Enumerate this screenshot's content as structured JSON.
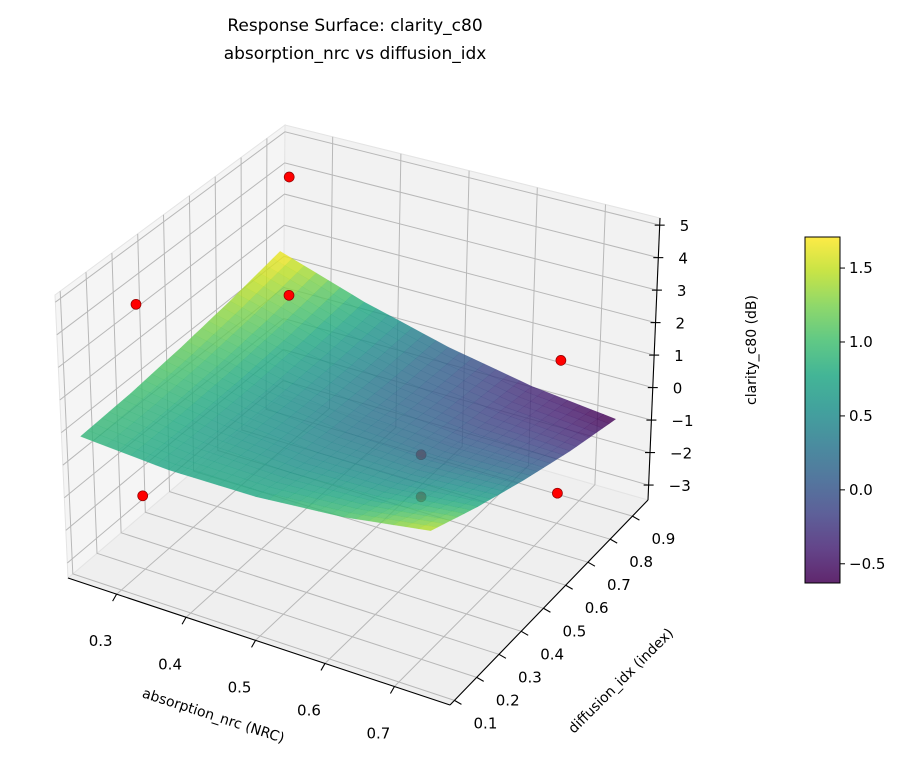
{
  "chart_data": {
    "type": "surface3d",
    "title": "Response Surface: clarity_c80",
    "subtitle": "absorption_nrc vs diffusion_idx",
    "xlabel": "absorption_nrc (NRC)",
    "ylabel": "diffusion_idx (index)",
    "zlabel": "clarity_c80 (dB)",
    "xlim": [
      0.23,
      0.78
    ],
    "ylim": [
      0.08,
      0.97
    ],
    "zlim": [
      -3.46,
      5.22
    ],
    "xticks": [
      0.3,
      0.4,
      0.5,
      0.6,
      0.7
    ],
    "xtick_labels": [
      "0.3",
      "0.4",
      "0.5",
      "0.6",
      "0.7"
    ],
    "yticks": [
      0.1,
      0.2,
      0.3,
      0.4,
      0.5,
      0.6,
      0.7,
      0.8,
      0.9
    ],
    "ytick_labels": [
      "0.1",
      "0.2",
      "0.3",
      "0.4",
      "0.5",
      "0.6",
      "0.7",
      "0.8",
      "0.9"
    ],
    "zticks": [
      -3,
      -2,
      -1,
      0,
      1,
      2,
      3,
      4,
      5
    ],
    "ztick_labels": [
      "−3",
      "−2",
      "−1",
      "0",
      "1",
      "2",
      "3",
      "4",
      "5"
    ],
    "grid": true,
    "colormap": "viridis",
    "surface": {
      "x": [
        0.25,
        0.375,
        0.5,
        0.625,
        0.75
      ],
      "y": [
        0.1,
        0.3,
        0.5,
        0.7,
        0.9
      ],
      "z": [
        [
          0.9,
          0.75,
          0.8,
          1.05,
          1.5
        ],
        [
          0.99,
          0.66,
          0.52,
          0.59,
          0.85
        ],
        [
          1.16,
          0.64,
          0.32,
          0.2,
          0.28
        ],
        [
          1.4,
          0.7,
          0.19,
          -0.12,
          -0.23
        ],
        [
          1.72,
          0.83,
          0.14,
          -0.36,
          -0.65
        ]
      ]
    },
    "points": [
      {
        "x": 0.3,
        "y": 0.8,
        "z": 5.0
      },
      {
        "x": 0.3,
        "y": 0.8,
        "z": 1.25
      },
      {
        "x": 0.3,
        "y": 0.2,
        "z": 4.7
      },
      {
        "x": 0.3,
        "y": 0.2,
        "z": -1.2
      },
      {
        "x": 0.6,
        "y": 0.5,
        "z": 0.1
      },
      {
        "x": 0.6,
        "y": 0.5,
        "z": -1.2
      },
      {
        "x": 0.7,
        "y": 0.8,
        "z": 1.57
      },
      {
        "x": 0.7,
        "y": 0.8,
        "z": -2.53
      }
    ],
    "point_color": "#ff0000",
    "colorbar": {
      "range": [
        -0.63,
        1.71
      ],
      "ticks": [
        -0.5,
        0.0,
        0.5,
        1.0,
        1.5
      ],
      "tick_labels": [
        "−0.5",
        "0.0",
        "0.5",
        "1.0",
        "1.5"
      ]
    }
  }
}
